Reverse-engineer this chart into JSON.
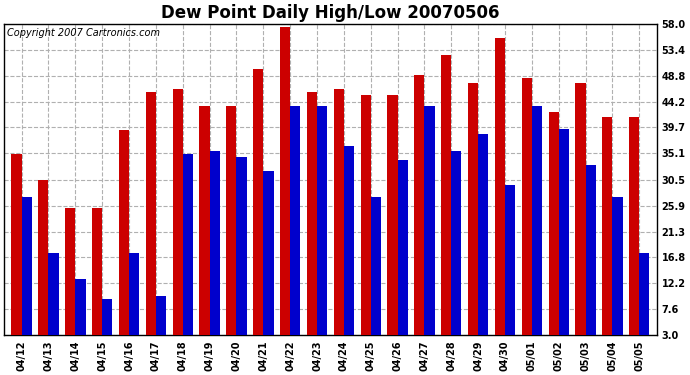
{
  "title": "Dew Point Daily High/Low 20070506",
  "copyright": "Copyright 2007 Cartronics.com",
  "dates": [
    "04/12",
    "04/13",
    "04/14",
    "04/15",
    "04/16",
    "04/17",
    "04/18",
    "04/19",
    "04/20",
    "04/21",
    "04/22",
    "04/23",
    "04/24",
    "04/25",
    "04/26",
    "04/27",
    "04/28",
    "04/29",
    "04/30",
    "05/01",
    "05/02",
    "05/03",
    "05/04",
    "05/05"
  ],
  "highs": [
    35.0,
    30.5,
    25.5,
    25.5,
    39.2,
    46.0,
    46.5,
    43.5,
    43.5,
    50.0,
    57.5,
    46.0,
    46.5,
    45.5,
    45.5,
    49.0,
    52.5,
    47.5,
    55.5,
    48.5,
    42.5,
    47.5,
    41.5,
    41.5
  ],
  "lows": [
    27.5,
    17.5,
    13.0,
    9.5,
    17.5,
    10.0,
    35.0,
    35.5,
    34.5,
    32.0,
    43.5,
    43.5,
    36.5,
    27.5,
    34.0,
    43.5,
    35.5,
    38.5,
    29.5,
    43.5,
    39.5,
    33.0,
    27.5,
    17.5
  ],
  "high_color": "#cc0000",
  "low_color": "#0000cc",
  "bg_color": "#ffffff",
  "plot_bg_color": "#ffffff",
  "grid_color": "#b0b0b0",
  "yticks": [
    3.0,
    7.6,
    12.2,
    16.8,
    21.3,
    25.9,
    30.5,
    35.1,
    39.7,
    44.2,
    48.8,
    53.4,
    58.0
  ],
  "ylim": [
    3.0,
    58.0
  ],
  "title_fontsize": 12,
  "copyright_fontsize": 7,
  "tick_fontsize": 7,
  "bar_width": 0.38
}
